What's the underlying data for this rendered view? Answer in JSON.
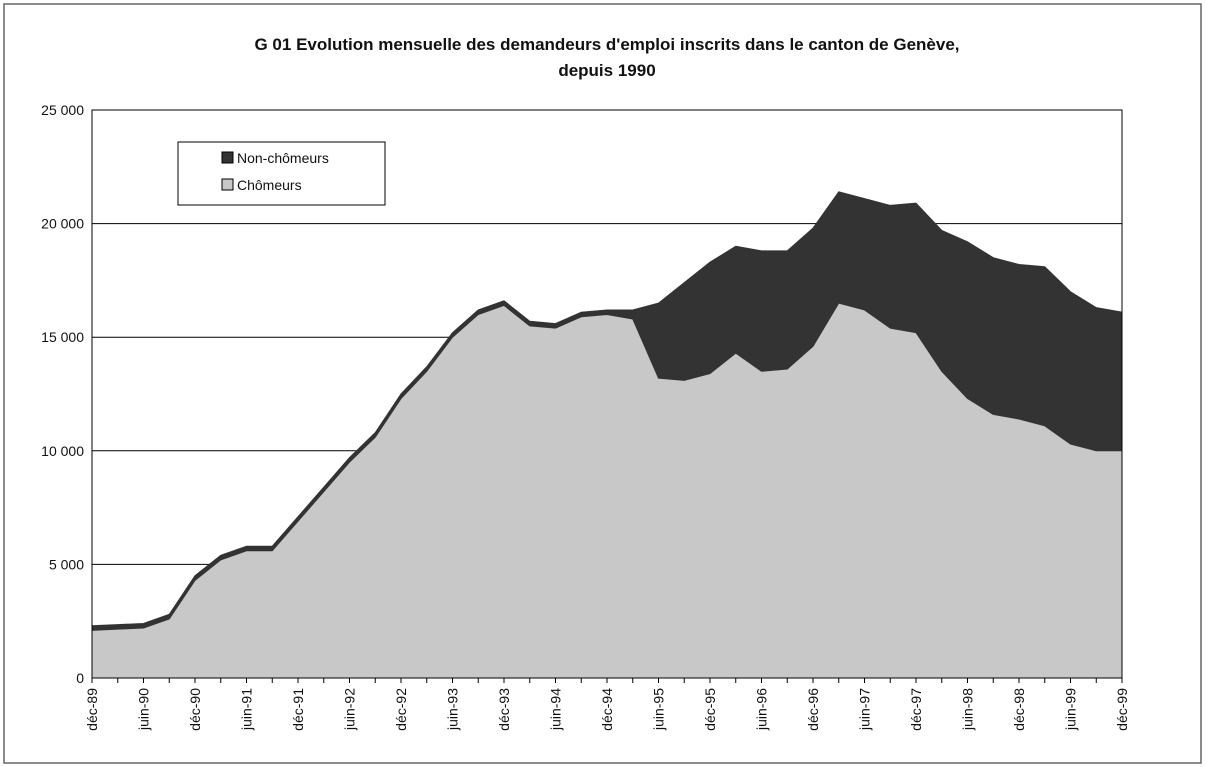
{
  "chart_data": {
    "type": "stacked_area",
    "title": "G 01  Evolution mensuelle des demandeurs d'emploi inscrits dans le canton de Genève,",
    "subtitle": "depuis 1990",
    "categories": [
      "déc-89",
      null,
      "juin-90",
      null,
      "déc-90",
      null,
      "juin-91",
      null,
      "déc-91",
      null,
      "juin-92",
      null,
      "déc-92",
      null,
      "juin-93",
      null,
      "déc-93",
      null,
      "juin-94",
      null,
      "déc-94",
      null,
      "juin-95",
      null,
      "déc-95",
      null,
      "juin-96",
      null,
      "déc-96",
      null,
      "juin-97",
      null,
      "déc-97",
      null,
      "juin-98",
      null,
      "déc-98",
      null,
      "juin-99",
      null,
      "déc-99"
    ],
    "series": [
      {
        "name": "Chômeurs",
        "color": "#c8c8c8",
        "values": [
          2100,
          2150,
          2200,
          2600,
          4300,
          5200,
          5600,
          5600,
          6900,
          8200,
          9500,
          10600,
          12300,
          13500,
          15000,
          16000,
          16400,
          15500,
          15400,
          15900,
          16000,
          15800,
          13200,
          13100,
          13400,
          14300,
          13500,
          13600,
          14600,
          16500,
          16200,
          15400,
          15200,
          13500,
          12300,
          11600,
          11400,
          11100,
          10300,
          10000,
          10000
        ]
      },
      {
        "name": "Non-chômeurs",
        "color": "#333333",
        "values": [
          200,
          200,
          200,
          200,
          200,
          200,
          200,
          200,
          200,
          200,
          200,
          200,
          200,
          200,
          200,
          200,
          200,
          200,
          200,
          200,
          200,
          400,
          3300,
          4300,
          4900,
          4700,
          5300,
          5200,
          5200,
          4900,
          4900,
          5400,
          5700,
          6200,
          6900,
          6900,
          6800,
          7000,
          6700,
          6300,
          6100
        ]
      }
    ],
    "ylim": [
      0,
      25000
    ],
    "yticks": [
      0,
      {
        "value": 5000,
        "label": "5 000"
      },
      {
        "value": 10000,
        "label": "10 000"
      },
      {
        "value": 15000,
        "label": "15 000"
      },
      {
        "value": 20000,
        "label": "20 000"
      },
      {
        "value": 25000,
        "label": "25 000"
      }
    ],
    "grid": true
  }
}
